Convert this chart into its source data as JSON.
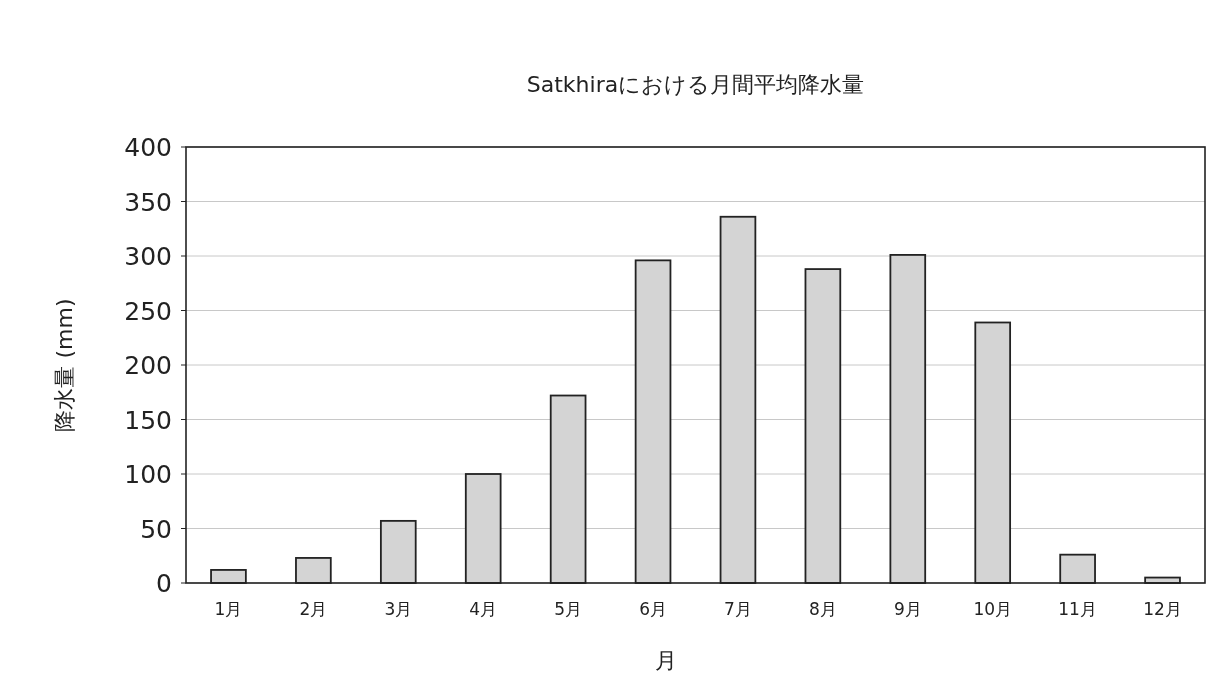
{
  "chart_data": {
    "type": "bar",
    "title": "Satkhiraにおける月間平均降水量",
    "xlabel": "月",
    "ylabel": "降水量 (mm)",
    "categories": [
      "1月",
      "2月",
      "3月",
      "4月",
      "5月",
      "6月",
      "7月",
      "8月",
      "9月",
      "10月",
      "11月",
      "12月"
    ],
    "values": [
      12,
      23,
      57,
      100,
      172,
      296,
      336,
      288,
      301,
      239,
      26,
      5
    ],
    "color": "#d4d4d4",
    "ylim": [
      0,
      400
    ],
    "yticks": [
      0,
      50,
      100,
      150,
      200,
      250,
      300,
      350,
      400
    ],
    "grid": "y"
  }
}
